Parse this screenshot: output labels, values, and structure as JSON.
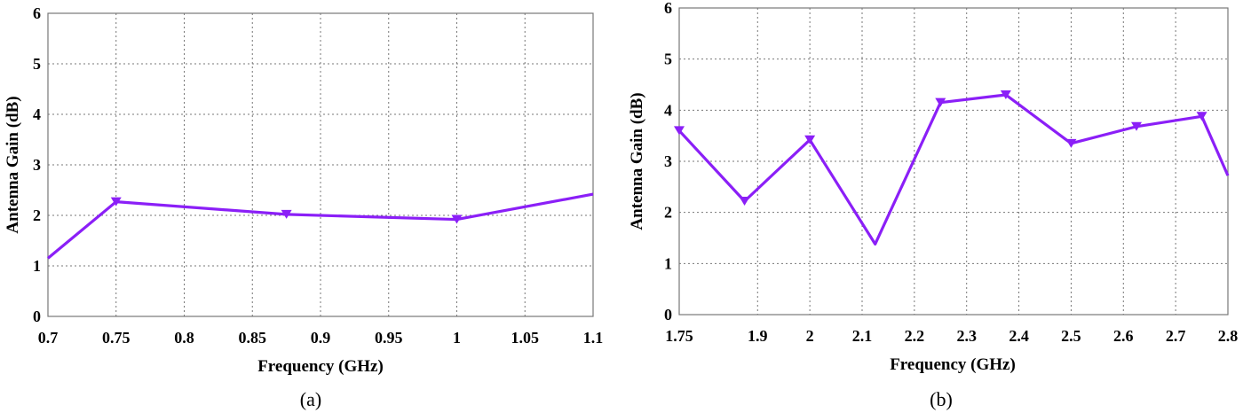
{
  "series_color": "#8b1ff7",
  "chart_data": [
    {
      "type": "line",
      "caption": "(a)",
      "xlabel": "Frequency (GHz)",
      "ylabel": "Antenna Gain (dB)",
      "xlim": [
        0.7,
        1.1
      ],
      "ylim": [
        0,
        6
      ],
      "x_ticks": [
        "0.7",
        "0.75",
        "0.8",
        "0.85",
        "0.9",
        "0.95",
        "1",
        "1.05",
        "1.1"
      ],
      "y_ticks": [
        "0",
        "1",
        "2",
        "3",
        "4",
        "5",
        "6"
      ],
      "grid": true,
      "x": [
        0.7,
        0.75,
        0.875,
        1.0,
        1.1
      ],
      "values": [
        1.15,
        2.27,
        2.02,
        1.92,
        2.42
      ],
      "markers": [
        false,
        true,
        true,
        true,
        false
      ]
    },
    {
      "type": "line",
      "caption": "(b)",
      "xlabel": "Frequency (GHz)",
      "ylabel": "Antenna Gain (dB)",
      "xlim": [
        1.75,
        2.8
      ],
      "ylim": [
        0,
        6
      ],
      "x_ticks": [
        "1.75",
        "1.9",
        "2",
        "2.1",
        "2.2",
        "2.3",
        "2.4",
        "2.5",
        "2.6",
        "2.7",
        "2.8"
      ],
      "y_ticks": [
        "0",
        "1",
        "2",
        "3",
        "4",
        "5",
        "6"
      ],
      "grid": true,
      "x": [
        1.75,
        1.875,
        2.0,
        2.125,
        2.25,
        2.375,
        2.5,
        2.625,
        2.75,
        2.8
      ],
      "values": [
        3.6,
        2.22,
        3.42,
        1.38,
        4.15,
        4.3,
        3.35,
        3.68,
        3.88,
        2.72
      ],
      "markers": [
        true,
        true,
        true,
        false,
        true,
        true,
        true,
        true,
        true,
        false
      ]
    }
  ]
}
